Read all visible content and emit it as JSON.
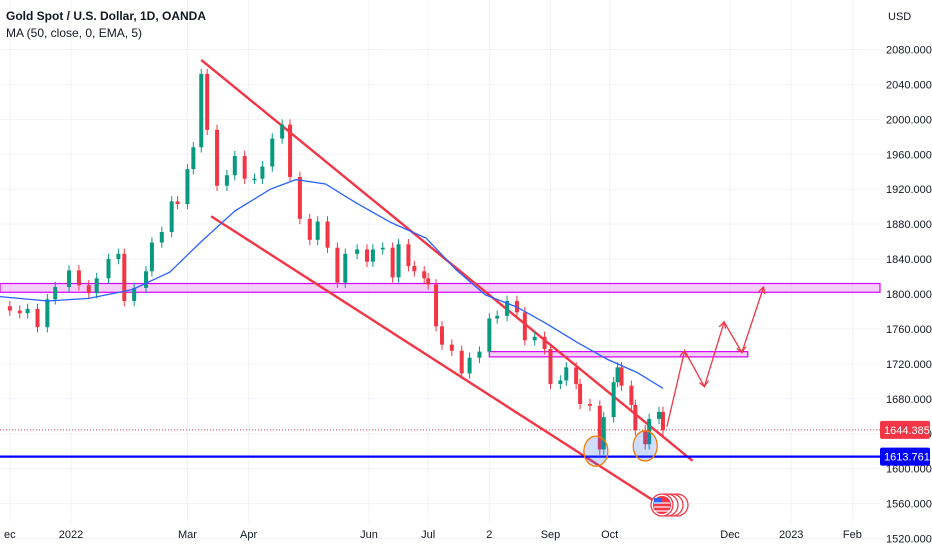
{
  "header": {
    "title": "Gold Spot / U.S. Dollar, 1D, OANDA",
    "indicator": "MA (50, close, 0, EMA, 5)"
  },
  "chart_data": {
    "type": "line",
    "title": "Gold Spot / U.S. Dollar, 1D, OANDA",
    "currency_label": "USD",
    "y_range": [
      1500,
      2100
    ],
    "y_ticks": [
      1520,
      1560,
      1600,
      1640,
      1680,
      1720,
      1760,
      1800,
      1840,
      1880,
      1920,
      1960,
      2000,
      2040,
      2080
    ],
    "y_tick_labels": [
      "1520.000",
      "1560.000",
      "1600.000",
      "1640.000",
      "1680.000",
      "1720.000",
      "1760.000",
      "1800.000",
      "1840.000",
      "1880.000",
      "1920.000",
      "1960.000",
      "2000.000",
      "2040.000",
      "2080.000"
    ],
    "x_tick_labels": [
      {
        "label": "ec",
        "date": "2021-12-01"
      },
      {
        "label": "2022",
        "date": "2022-01-01"
      },
      {
        "label": "Mar",
        "date": "2022-03-01"
      },
      {
        "label": "Apr",
        "date": "2022-04-01"
      },
      {
        "label": "Jun",
        "date": "2022-06-01"
      },
      {
        "label": "Jul",
        "date": "2022-07-01"
      },
      {
        "label": "2",
        "date": "2022-08-01"
      },
      {
        "label": "Sep",
        "date": "2022-09-01"
      },
      {
        "label": "Oct",
        "date": "2022-10-01"
      },
      {
        "label": "Dec",
        "date": "2022-12-01"
      },
      {
        "label": "2023",
        "date": "2023-01-01"
      },
      {
        "label": "Feb",
        "date": "2023-02-01"
      }
    ],
    "x_range": [
      "2021-11-26",
      "2023-02-15"
    ],
    "grid": true,
    "series": [
      {
        "name": "XAUUSD",
        "color": "#089981",
        "down_color": "#f23645",
        "points": [
          [
            "2021-11-26",
            1786
          ],
          [
            "2021-12-01",
            1781
          ],
          [
            "2021-12-06",
            1778
          ],
          [
            "2021-12-10",
            1783
          ],
          [
            "2021-12-15",
            1762
          ],
          [
            "2021-12-20",
            1794
          ],
          [
            "2021-12-24",
            1808
          ],
          [
            "2021-12-31",
            1827
          ],
          [
            "2022-01-05",
            1810
          ],
          [
            "2022-01-10",
            1801
          ],
          [
            "2022-01-14",
            1818
          ],
          [
            "2022-01-20",
            1840
          ],
          [
            "2022-01-25",
            1846
          ],
          [
            "2022-01-28",
            1792
          ],
          [
            "2022-02-02",
            1807
          ],
          [
            "2022-02-08",
            1826
          ],
          [
            "2022-02-11",
            1859
          ],
          [
            "2022-02-16",
            1871
          ],
          [
            "2022-02-21",
            1906
          ],
          [
            "2022-02-24",
            1903
          ],
          [
            "2022-03-01",
            1943
          ],
          [
            "2022-03-04",
            1968
          ],
          [
            "2022-03-08",
            2052
          ],
          [
            "2022-03-11",
            1988
          ],
          [
            "2022-03-16",
            1924
          ],
          [
            "2022-03-21",
            1936
          ],
          [
            "2022-03-25",
            1958
          ],
          [
            "2022-03-30",
            1932
          ],
          [
            "2022-04-04",
            1932
          ],
          [
            "2022-04-08",
            1946
          ],
          [
            "2022-04-13",
            1978
          ],
          [
            "2022-04-18",
            1994
          ],
          [
            "2022-04-22",
            1934
          ],
          [
            "2022-04-27",
            1886
          ],
          [
            "2022-05-02",
            1862
          ],
          [
            "2022-05-06",
            1883
          ],
          [
            "2022-05-11",
            1853
          ],
          [
            "2022-05-16",
            1813
          ],
          [
            "2022-05-20",
            1846
          ],
          [
            "2022-05-26",
            1851
          ],
          [
            "2022-05-31",
            1837
          ],
          [
            "2022-06-03",
            1851
          ],
          [
            "2022-06-08",
            1853
          ],
          [
            "2022-06-13",
            1819
          ],
          [
            "2022-06-16",
            1857
          ],
          [
            "2022-06-21",
            1832
          ],
          [
            "2022-06-24",
            1826
          ],
          [
            "2022-06-29",
            1818
          ],
          [
            "2022-07-01",
            1811
          ],
          [
            "2022-07-05",
            1763
          ],
          [
            "2022-07-08",
            1742
          ],
          [
            "2022-07-13",
            1735
          ],
          [
            "2022-07-18",
            1709
          ],
          [
            "2022-07-22",
            1727
          ],
          [
            "2022-07-27",
            1734
          ],
          [
            "2022-08-01",
            1772
          ],
          [
            "2022-08-05",
            1775
          ],
          [
            "2022-08-10",
            1792
          ],
          [
            "2022-08-15",
            1779
          ],
          [
            "2022-08-19",
            1747
          ],
          [
            "2022-08-24",
            1751
          ],
          [
            "2022-08-29",
            1737
          ],
          [
            "2022-09-01",
            1697
          ],
          [
            "2022-09-06",
            1701
          ],
          [
            "2022-09-09",
            1716
          ],
          [
            "2022-09-14",
            1697
          ],
          [
            "2022-09-16",
            1674
          ],
          [
            "2022-09-21",
            1672
          ],
          [
            "2022-09-26",
            1622
          ],
          [
            "2022-09-28",
            1659
          ],
          [
            "2022-10-03",
            1699
          ],
          [
            "2022-10-05",
            1716
          ],
          [
            "2022-10-07",
            1695
          ],
          [
            "2022-10-12",
            1673
          ],
          [
            "2022-10-14",
            1644
          ],
          [
            "2022-10-19",
            1628
          ],
          [
            "2022-10-21",
            1657
          ],
          [
            "2022-10-26",
            1665
          ],
          [
            "2022-10-28",
            1644
          ]
        ]
      },
      {
        "name": "MA (50, close, 0, EMA, 5)",
        "color": "#2962ff",
        "points": [
          [
            "2021-11-26",
            1797
          ],
          [
            "2021-12-20",
            1792
          ],
          [
            "2022-01-10",
            1795
          ],
          [
            "2022-02-01",
            1805
          ],
          [
            "2022-02-20",
            1825
          ],
          [
            "2022-03-08",
            1860
          ],
          [
            "2022-03-25",
            1895
          ],
          [
            "2022-04-12",
            1920
          ],
          [
            "2022-04-25",
            1931
          ],
          [
            "2022-05-10",
            1926
          ],
          [
            "2022-05-25",
            1905
          ],
          [
            "2022-06-12",
            1882
          ],
          [
            "2022-06-30",
            1864
          ],
          [
            "2022-07-15",
            1828
          ],
          [
            "2022-07-30",
            1799
          ],
          [
            "2022-08-15",
            1785
          ],
          [
            "2022-08-30",
            1766
          ],
          [
            "2022-09-15",
            1744
          ],
          [
            "2022-09-30",
            1725
          ],
          [
            "2022-10-15",
            1710
          ],
          [
            "2022-10-28",
            1692
          ]
        ]
      }
    ],
    "levels": [
      {
        "value": 1644.385,
        "label": "1644.385",
        "color": "#f23645"
      },
      {
        "value": 1613.761,
        "label": "1613.761",
        "color": "#0000ff"
      }
    ],
    "annotations": {
      "resistance_zone": {
        "from": 1802,
        "to": 1812,
        "color": "#d500f9"
      },
      "small_zone": {
        "start": "2022-08-01",
        "end": "2022-12-10",
        "from": 1728,
        "to": 1734,
        "color": "#d500f9"
      },
      "channel_upper": [
        [
          "2022-03-08",
          2068
        ],
        [
          "2022-11-12",
          1609
        ]
      ],
      "channel_lower": [
        [
          "2022-03-13",
          1889
        ],
        [
          "2022-10-27",
          1558
        ]
      ],
      "channel_color": "#f23645",
      "projection_path": [
        [
          "2022-10-30",
          1648
        ],
        [
          "2022-11-08",
          1735
        ],
        [
          "2022-11-18",
          1694
        ],
        [
          "2022-11-28",
          1768
        ],
        [
          "2022-12-07",
          1733
        ],
        [
          "2022-12-18",
          1808
        ]
      ],
      "circles": [
        {
          "date": "2022-09-24",
          "value": 1620
        },
        {
          "date": "2022-10-19",
          "value": 1626
        }
      ]
    }
  }
}
